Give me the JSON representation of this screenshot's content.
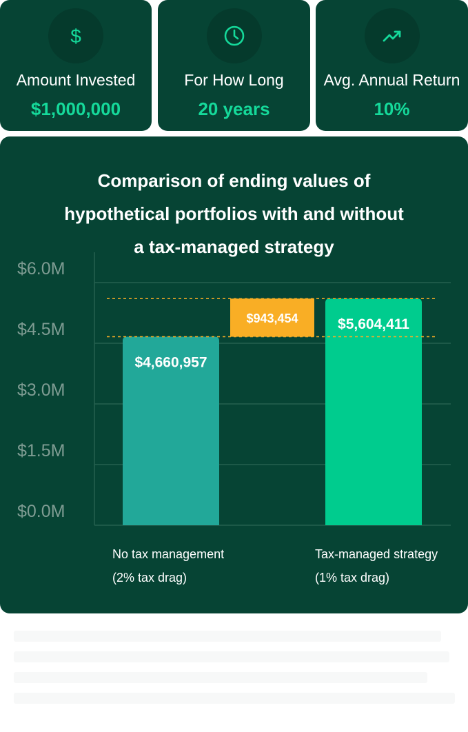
{
  "stats": [
    {
      "label": "Amount Invested",
      "value": "$1,000,000",
      "icon": "dollar-icon"
    },
    {
      "label": "For How Long",
      "value": "20 years",
      "icon": "clock-icon"
    },
    {
      "label": "Avg. Annual Return",
      "value": "10%",
      "icon": "trending-up-icon"
    }
  ],
  "colors": {
    "card_bg": "#064434",
    "accent_green": "#15d99a",
    "bar_no_tax": "#22a899",
    "bar_tax_managed": "#00cc8e",
    "difference": "#f9ae25"
  },
  "chart_data": {
    "type": "bar",
    "title": "Comparison of ending values of hypothetical portfolios with and without a tax-managed strategy",
    "title_lines": [
      "Comparison of ending values of",
      "hypothetical portfolios with and without",
      "a tax-managed strategy"
    ],
    "ylim": [
      0,
      6000000
    ],
    "yticks": [
      {
        "value": 6000000,
        "label": "$6.0M"
      },
      {
        "value": 4500000,
        "label": "$4.5M"
      },
      {
        "value": 3000000,
        "label": "$3.0M"
      },
      {
        "value": 1500000,
        "label": "$1.5M"
      },
      {
        "value": 0,
        "label": "$0.0M"
      }
    ],
    "grid": true,
    "bars": [
      {
        "category": [
          "No tax management",
          "(2% tax drag)"
        ],
        "value": 4660957,
        "label": "$4,660,957"
      },
      {
        "category": [
          "Tax-managed strategy",
          "(1% tax drag)"
        ],
        "value": 5604411,
        "label": "$5,604,411"
      }
    ],
    "difference": {
      "value": 943454,
      "label": "$943,454"
    }
  }
}
